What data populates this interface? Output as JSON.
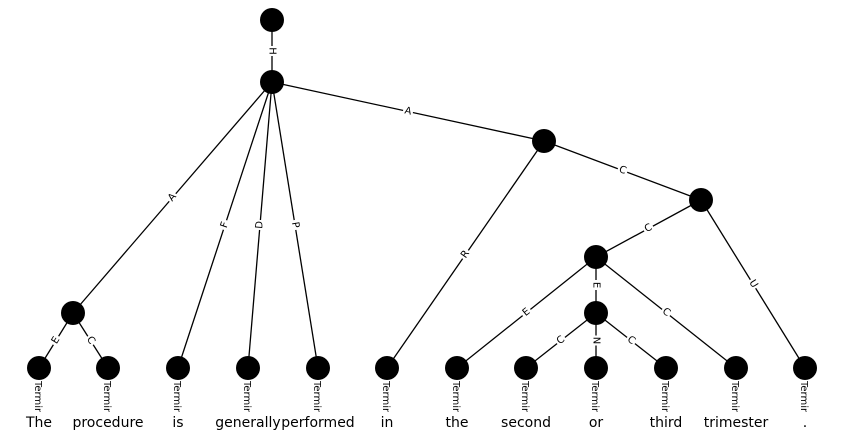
{
  "tokens": [
    "The",
    "procedure",
    "is",
    "generally",
    "performed",
    "in",
    "the",
    "second",
    "or",
    "third",
    "trimester",
    "."
  ],
  "terminal_label": "Termin",
  "nodes": [
    {
      "id": "top"
    },
    {
      "id": "root"
    },
    {
      "id": "np-the-procedure"
    },
    {
      "id": "pp-in"
    },
    {
      "id": "np-trimester"
    },
    {
      "id": "adj-coord"
    },
    {
      "id": "coord-center"
    },
    {
      "id": "t-the"
    },
    {
      "id": "t-procedure"
    },
    {
      "id": "t-is"
    },
    {
      "id": "t-generally"
    },
    {
      "id": "t-performed"
    },
    {
      "id": "t-in"
    },
    {
      "id": "t-the2"
    },
    {
      "id": "t-second"
    },
    {
      "id": "t-or"
    },
    {
      "id": "t-third"
    },
    {
      "id": "t-trimester"
    },
    {
      "id": "t-period"
    }
  ],
  "edges": [
    {
      "from": "top",
      "to": "root",
      "label": "H"
    },
    {
      "from": "root",
      "to": "np-the-procedure",
      "label": "A"
    },
    {
      "from": "root",
      "to": "t-is",
      "label": "F"
    },
    {
      "from": "root",
      "to": "t-generally",
      "label": "D"
    },
    {
      "from": "root",
      "to": "t-performed",
      "label": "P"
    },
    {
      "from": "root",
      "to": "pp-in",
      "label": "A"
    },
    {
      "from": "np-the-procedure",
      "to": "t-the",
      "label": "E"
    },
    {
      "from": "np-the-procedure",
      "to": "t-procedure",
      "label": "C"
    },
    {
      "from": "pp-in",
      "to": "t-in",
      "label": "R"
    },
    {
      "from": "pp-in",
      "to": "np-trimester",
      "label": "C"
    },
    {
      "from": "np-trimester",
      "to": "adj-coord",
      "label": "C"
    },
    {
      "from": "np-trimester",
      "to": "t-period",
      "label": "U"
    },
    {
      "from": "adj-coord",
      "to": "t-the2",
      "label": "E"
    },
    {
      "from": "adj-coord",
      "to": "coord-center",
      "label": "E"
    },
    {
      "from": "adj-coord",
      "to": "t-trimester",
      "label": "C"
    },
    {
      "from": "coord-center",
      "to": "t-second",
      "label": "C"
    },
    {
      "from": "coord-center",
      "to": "t-or",
      "label": "N"
    },
    {
      "from": "coord-center",
      "to": "t-third",
      "label": "C"
    }
  ]
}
